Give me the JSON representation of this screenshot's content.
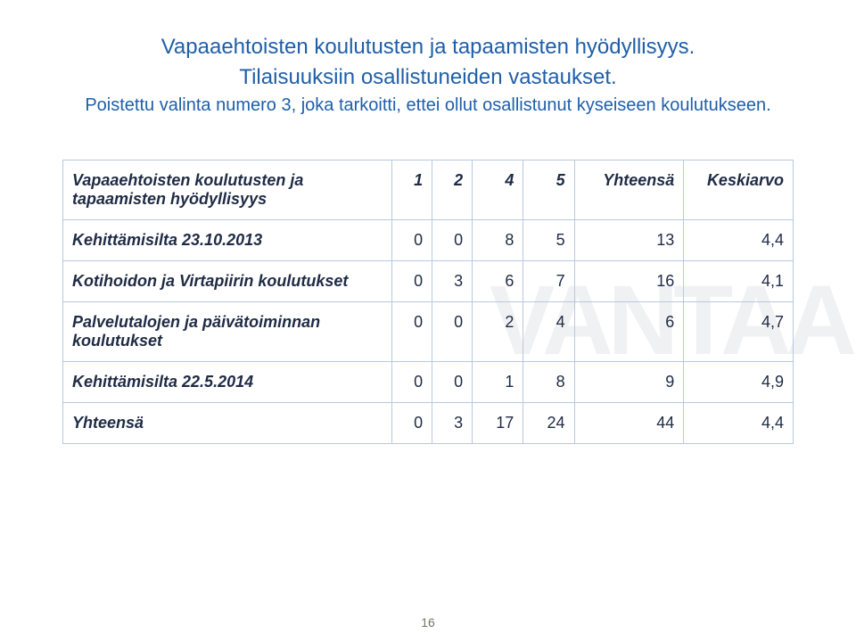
{
  "watermark": "VANTAA",
  "title": {
    "line1": "Vapaaehtoisten koulutusten ja tapaamisten hyödyllisyys.",
    "line2": "Tilaisuuksiin osallistuneiden vastaukset.",
    "line3": "Poistettu valinta numero 3, joka tarkoitti, ettei ollut osallistunut kyseiseen koulutukseen."
  },
  "table": {
    "header_rowlabel": "Vapaaehtoisten koulutusten ja\ntapaamisten hyödyllisyys",
    "columns": [
      "1",
      "2",
      "4",
      "5",
      "Yhteensä",
      "Keskiarvo"
    ],
    "rows": [
      {
        "label": "Kehittämisilta 23.10.2013",
        "cells": [
          "0",
          "0",
          "8",
          "5",
          "13",
          "4,4"
        ]
      },
      {
        "label": "Kotihoidon ja Virtapiirin koulutukset",
        "cells": [
          "0",
          "3",
          "6",
          "7",
          "16",
          "4,1"
        ]
      },
      {
        "label": "Palvelutalojen ja päivätoiminnan koulutukset",
        "cells": [
          "0",
          "0",
          "2",
          "4",
          "6",
          "4,7"
        ]
      },
      {
        "label": "Kehittämisilta 22.5.2014",
        "cells": [
          "0",
          "0",
          "1",
          "8",
          "9",
          "4,9"
        ]
      }
    ],
    "footer": {
      "label": "Yhteensä",
      "cells": [
        "0",
        "3",
        "17",
        "24",
        "44",
        "4,4"
      ]
    }
  },
  "page_number": "16",
  "colors": {
    "title_color": "#1f5fa8",
    "text_color": "#1f2b45",
    "border_color": "#b9c8e0",
    "watermark_color": "#f0f1f2",
    "pagenum_color": "#7a7367",
    "background": "#ffffff"
  }
}
